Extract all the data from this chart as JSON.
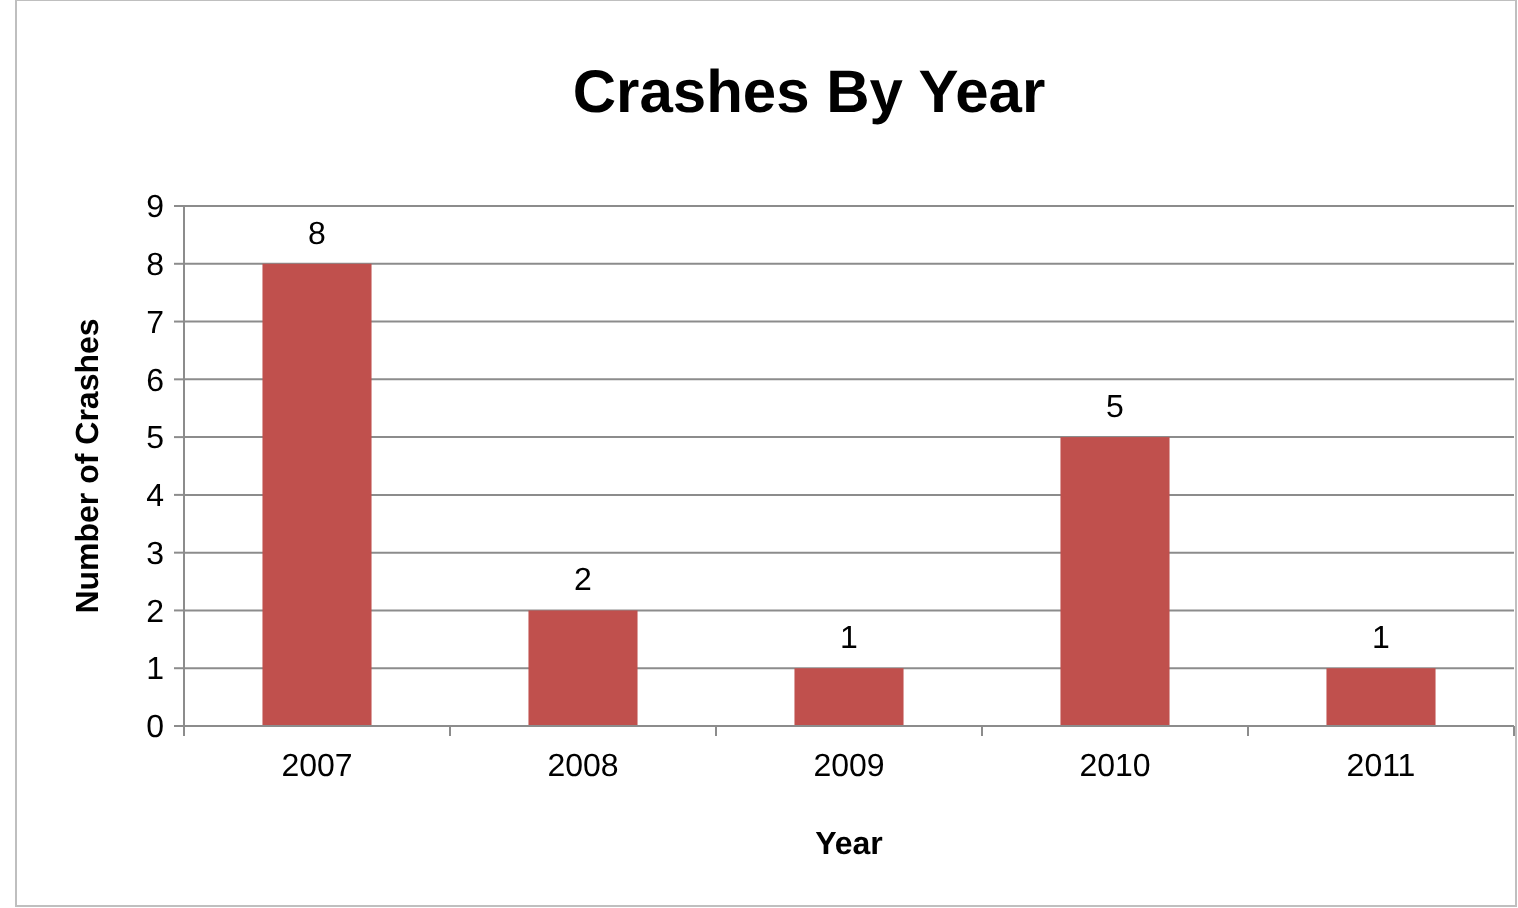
{
  "chart_data": {
    "type": "bar",
    "title": "Crashes By Year",
    "xlabel": "Year",
    "ylabel": "Number of Crashes",
    "categories": [
      "2007",
      "2008",
      "2009",
      "2010",
      "2011"
    ],
    "values": [
      8,
      2,
      1,
      5,
      1
    ],
    "color": "#c0504d",
    "ylim": [
      0,
      9
    ],
    "yticks": [
      0,
      1,
      2,
      3,
      4,
      5,
      6,
      7,
      8,
      9
    ],
    "grid": "y",
    "data_labels": true
  }
}
